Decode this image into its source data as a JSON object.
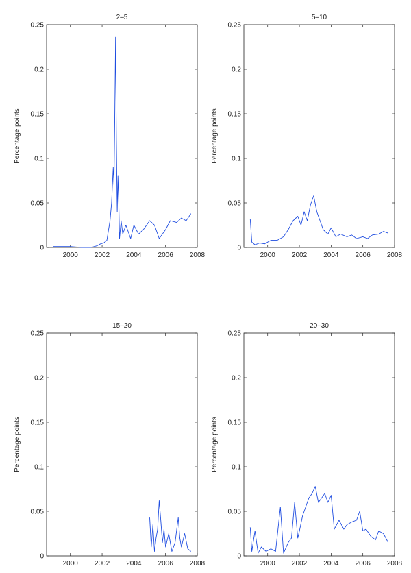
{
  "figure": {
    "line_color": "#1f4de0",
    "axis_color": "#222222",
    "background": "#ffffff"
  },
  "chart_data": [
    {
      "type": "line",
      "title": "2–5",
      "ylabel": "Percentage points",
      "xlabel": "",
      "xlim": [
        1998.5,
        2008.0
      ],
      "ylim": [
        0,
        0.25
      ],
      "xticks": [
        2000,
        2002,
        2004,
        2006,
        2008
      ],
      "yticks": [
        0,
        0.05,
        0.1,
        0.15,
        0.2,
        0.25
      ],
      "ytick_labels": [
        "0",
        "0.05",
        "0.1",
        "0.15",
        "0.2",
        "0.25"
      ],
      "grid": false,
      "series": [
        {
          "x": [
            1998.9,
            1999.5,
            2000.0,
            2000.7,
            2001.3,
            2001.7,
            2001.9,
            2002.1,
            2002.3,
            2002.5,
            2002.6,
            2002.7,
            2002.75,
            2002.8,
            2002.85,
            2002.9,
            2002.95,
            2003.0,
            2003.05,
            2003.1,
            2003.2,
            2003.3,
            2003.5,
            2003.8,
            2004.0,
            2004.3,
            2004.6,
            2005.0,
            2005.3,
            2005.6,
            2006.0,
            2006.3,
            2006.7,
            2007.0,
            2007.3,
            2007.6
          ],
          "y": [
            0.001,
            0.001,
            0.001,
            0.0,
            0.0,
            0.002,
            0.004,
            0.005,
            0.008,
            0.03,
            0.05,
            0.09,
            0.07,
            0.15,
            0.236,
            0.12,
            0.04,
            0.08,
            0.05,
            0.01,
            0.03,
            0.015,
            0.025,
            0.01,
            0.025,
            0.015,
            0.02,
            0.03,
            0.025,
            0.01,
            0.02,
            0.03,
            0.028,
            0.033,
            0.03,
            0.038
          ]
        }
      ]
    },
    {
      "type": "line",
      "title": "5–10",
      "ylabel": "Percentage points",
      "xlabel": "",
      "xlim": [
        1998.5,
        2008.0
      ],
      "ylim": [
        0,
        0.25
      ],
      "xticks": [
        2000,
        2002,
        2004,
        2006,
        2008
      ],
      "yticks": [
        0,
        0.05,
        0.1,
        0.15,
        0.2,
        0.25
      ],
      "ytick_labels": [
        "0",
        "0.05",
        "0.1",
        "0.15",
        "0.2",
        "0.25"
      ],
      "grid": false,
      "series": [
        {
          "x": [
            1998.9,
            1999.0,
            1999.2,
            1999.5,
            1999.8,
            2000.2,
            2000.6,
            2001.0,
            2001.3,
            2001.6,
            2001.9,
            2002.1,
            2002.3,
            2002.5,
            2002.7,
            2002.9,
            2003.1,
            2003.3,
            2003.5,
            2003.8,
            2004.0,
            2004.3,
            2004.6,
            2005.0,
            2005.3,
            2005.6,
            2006.0,
            2006.3,
            2006.6,
            2007.0,
            2007.3,
            2007.6
          ],
          "y": [
            0.032,
            0.006,
            0.003,
            0.005,
            0.004,
            0.008,
            0.008,
            0.012,
            0.02,
            0.03,
            0.035,
            0.025,
            0.04,
            0.03,
            0.048,
            0.058,
            0.04,
            0.03,
            0.02,
            0.015,
            0.022,
            0.012,
            0.015,
            0.012,
            0.014,
            0.01,
            0.012,
            0.01,
            0.014,
            0.015,
            0.018,
            0.016
          ]
        }
      ]
    },
    {
      "type": "line",
      "title": "15–20",
      "ylabel": "Percentage points",
      "xlabel": "",
      "xlim": [
        1998.5,
        2008.0
      ],
      "ylim": [
        0,
        0.25
      ],
      "xticks": [
        2000,
        2002,
        2004,
        2006,
        2008
      ],
      "yticks": [
        0,
        0.05,
        0.1,
        0.15,
        0.2,
        0.25
      ],
      "ytick_labels": [
        "0",
        "0.05",
        "0.1",
        "0.15",
        "0.2",
        "0.25"
      ],
      "grid": false,
      "series": [
        {
          "x": [
            2005.0,
            2005.1,
            2005.2,
            2005.3,
            2005.4,
            2005.5,
            2005.6,
            2005.7,
            2005.8,
            2005.9,
            2006.0,
            2006.2,
            2006.4,
            2006.6,
            2006.8,
            2006.9,
            2007.0,
            2007.2,
            2007.4,
            2007.6
          ],
          "y": [
            0.043,
            0.01,
            0.035,
            0.005,
            0.02,
            0.03,
            0.062,
            0.04,
            0.015,
            0.03,
            0.01,
            0.025,
            0.005,
            0.015,
            0.043,
            0.02,
            0.01,
            0.025,
            0.008,
            0.005
          ]
        }
      ]
    },
    {
      "type": "line",
      "title": "20–30",
      "ylabel": "Percentage points",
      "xlabel": "",
      "xlim": [
        1998.5,
        2008.0
      ],
      "ylim": [
        0,
        0.25
      ],
      "xticks": [
        2000,
        2002,
        2004,
        2006,
        2008
      ],
      "yticks": [
        0,
        0.05,
        0.1,
        0.15,
        0.2,
        0.25
      ],
      "ytick_labels": [
        "0",
        "0.05",
        "0.1",
        "0.15",
        "0.2",
        "0.25"
      ],
      "grid": false,
      "series": [
        {
          "x": [
            1998.9,
            1999.0,
            1999.2,
            1999.4,
            1999.6,
            1999.9,
            2000.2,
            2000.5,
            2000.8,
            2001.0,
            2001.3,
            2001.5,
            2001.7,
            2001.9,
            2002.0,
            2002.2,
            2002.4,
            2002.6,
            2002.8,
            2003.0,
            2003.2,
            2003.4,
            2003.6,
            2003.8,
            2004.0,
            2004.2,
            2004.5,
            2004.8,
            2005.0,
            2005.3,
            2005.6,
            2005.8,
            2006.0,
            2006.2,
            2006.5,
            2006.8,
            2007.0,
            2007.3,
            2007.6
          ],
          "y": [
            0.032,
            0.005,
            0.028,
            0.003,
            0.01,
            0.005,
            0.008,
            0.005,
            0.055,
            0.003,
            0.015,
            0.02,
            0.06,
            0.02,
            0.028,
            0.045,
            0.055,
            0.065,
            0.07,
            0.078,
            0.06,
            0.065,
            0.07,
            0.06,
            0.068,
            0.03,
            0.04,
            0.03,
            0.035,
            0.038,
            0.04,
            0.05,
            0.028,
            0.03,
            0.022,
            0.018,
            0.028,
            0.025,
            0.015
          ]
        }
      ]
    }
  ]
}
